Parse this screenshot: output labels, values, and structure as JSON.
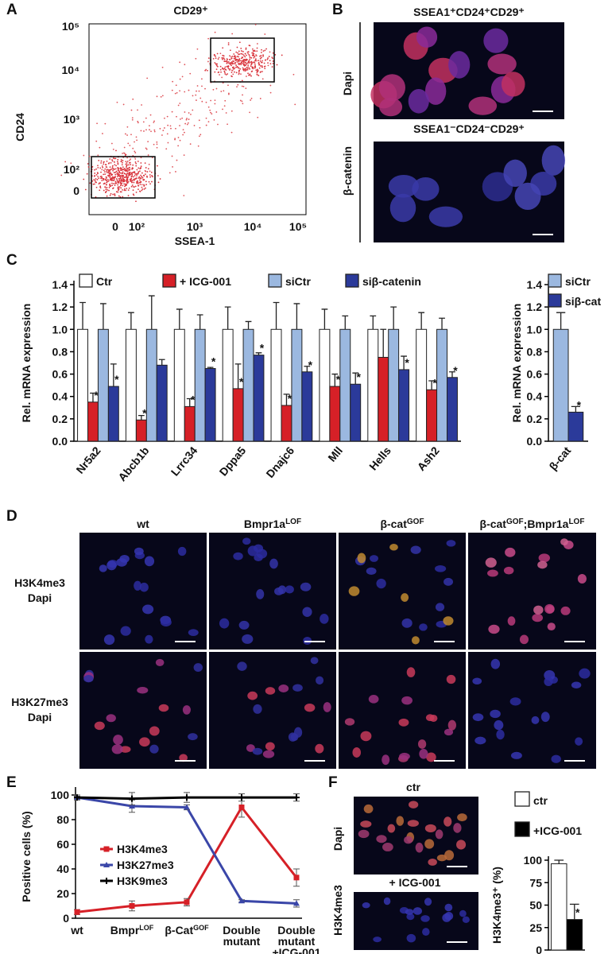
{
  "panel_labels": [
    "A",
    "B",
    "C",
    "D",
    "E",
    "F"
  ],
  "panel_a": {
    "title": "CD29⁺",
    "x_label": "SSEA-1",
    "y_label": "CD24",
    "x_tick_labels": [
      "0",
      "10²",
      "10³",
      "10⁴",
      "10⁵"
    ],
    "y_tick_labels": [
      "0",
      "10²",
      "10³",
      "10⁴",
      "10⁵"
    ]
  },
  "panel_b": {
    "captions": [
      "SSEA1⁺CD24⁺CD29⁺",
      "SSEA1⁻CD24⁻CD29⁺"
    ],
    "stain": "β-catenin",
    "counterstain": "Dapi"
  },
  "panel_d": {
    "column_headers": [
      [
        {
          "text": "wt"
        }
      ],
      [
        {
          "text": "Bmpr1a"
        },
        {
          "text": "LOF",
          "sup": true
        }
      ],
      [
        {
          "text": "β-cat"
        },
        {
          "text": "GOF",
          "sup": true
        }
      ],
      [
        {
          "text": "β-cat"
        },
        {
          "text": "GOF",
          "sup": true
        },
        {
          "text": ";Bmpr1a"
        },
        {
          "text": "LOF",
          "sup": true
        }
      ]
    ],
    "row_labels": [
      {
        "stain": "H3K4me3",
        "counterstain": "Dapi"
      },
      {
        "stain": "H3K27me3",
        "counterstain": "Dapi"
      }
    ]
  },
  "panel_f": {
    "captions": [
      "ctr",
      "+ ICG-001"
    ],
    "stain": "H3K4me3",
    "counterstain": "Dapi"
  },
  "chart_data": [
    {
      "type": "bar",
      "y_label": "Rel. mRNA expression",
      "categories": [
        "Nr5a2",
        "Abcb1b",
        "Lrrc34",
        "Dppa5",
        "Dnajc6",
        "Mll",
        "Hells",
        "Ash2"
      ],
      "series": [
        {
          "name": "Ctr",
          "color": "#ffffff",
          "values": [
            1.0,
            1.0,
            1.0,
            1.0,
            1.0,
            1.0,
            1.0,
            1.0
          ],
          "errors": [
            0.24,
            0.15,
            0.18,
            0.2,
            0.24,
            0.18,
            0.12,
            0.15
          ]
        },
        {
          "name": "+ ICG-001",
          "color": "#d62027",
          "values": [
            0.35,
            0.19,
            0.31,
            0.47,
            0.32,
            0.49,
            0.75,
            0.46
          ],
          "errors": [
            0.08,
            0.04,
            0.07,
            0.22,
            0.1,
            0.11,
            0.25,
            0.08
          ],
          "significance": [
            "*",
            "*",
            "*",
            "*",
            "*",
            "*",
            null,
            "*"
          ]
        },
        {
          "name": "siCtr",
          "color": "#9bb8e0",
          "values": [
            1.0,
            1.0,
            1.0,
            1.0,
            1.0,
            1.0,
            1.0,
            1.0
          ],
          "errors": [
            0.23,
            0.3,
            0.13,
            0.07,
            0.23,
            0.12,
            0.2,
            0.1
          ]
        },
        {
          "name": "siβ-catenin",
          "color": "#2b3a9a",
          "values": [
            0.49,
            0.68,
            0.65,
            0.77,
            0.62,
            0.51,
            0.64,
            0.57
          ],
          "errors": [
            0.2,
            0.05,
            0.01,
            0.02,
            0.05,
            0.1,
            0.12,
            0.05
          ],
          "significance": [
            "*",
            null,
            "*",
            "*",
            "*",
            "*",
            "*",
            "*"
          ]
        }
      ],
      "ylim": [
        0,
        1.4
      ],
      "yticks": [
        {
          "value": 0,
          "label": "0.0"
        },
        0.2,
        0.4,
        0.6,
        0.8,
        {
          "value": 1,
          "label": "1.0"
        },
        1.2,
        1.4
      ]
    },
    {
      "type": "bar",
      "y_label": "Rel. mRNA expression",
      "categories": [
        "β-cat"
      ],
      "series": [
        {
          "name": "siCtr",
          "color": "#9bb8e0",
          "values": [
            1.0
          ],
          "errors": [
            0.15
          ]
        },
        {
          "name": "siβ-cat",
          "color": "#2b3a9a",
          "values": [
            0.26
          ],
          "errors": [
            0.05
          ],
          "significance": [
            "*"
          ]
        }
      ],
      "ylim": [
        0,
        1.4
      ],
      "yticks": [
        {
          "value": 0,
          "label": "0.0"
        },
        0.2,
        0.4,
        0.6,
        0.8,
        {
          "value": 1,
          "label": "1.0"
        },
        1.2,
        1.4
      ]
    },
    {
      "type": "line",
      "y_label": "Positive cells (%)",
      "categories": [
        "wt",
        "Bmpr",
        "β-Cat",
        "Double mutant",
        "Double mutant"
      ],
      "category_superscripts": [
        null,
        "LOF",
        "GOF",
        null,
        null
      ],
      "category_notes": [
        null,
        null,
        null,
        null,
        "+ICG-001"
      ],
      "series": [
        {
          "name": "H3K4me3",
          "color": "#d62027",
          "marker": "square",
          "values": [
            5,
            10,
            13,
            90,
            33
          ],
          "errors": [
            2,
            4,
            3,
            8,
            7
          ]
        },
        {
          "name": "H3K27me3",
          "color": "#3a46a8",
          "marker": "triangle",
          "values": [
            98,
            91,
            90,
            14,
            12
          ],
          "errors": [
            1,
            5,
            2,
            1,
            3
          ]
        },
        {
          "name": "H3K9me3",
          "color": "#000000",
          "marker": "plus",
          "values": [
            98,
            97,
            98,
            98,
            98
          ],
          "errors": [
            2,
            5,
            4,
            3,
            3
          ]
        }
      ],
      "ylim": [
        0,
        100
      ],
      "yticks": [
        0,
        20,
        40,
        60,
        80,
        100
      ]
    },
    {
      "type": "bar",
      "y_label": "H3K4me3⁺ (%)",
      "categories": [
        null
      ],
      "series": [
        {
          "name": "ctr",
          "color": "#ffffff",
          "values": [
            96
          ],
          "errors": [
            4
          ]
        },
        {
          "name": "+ICG-001",
          "color": "#000000",
          "values": [
            34
          ],
          "errors": [
            17
          ],
          "significance": [
            "*"
          ]
        }
      ],
      "ylim": [
        0,
        100
      ],
      "yticks": [
        0,
        25,
        50,
        75,
        100
      ]
    }
  ]
}
